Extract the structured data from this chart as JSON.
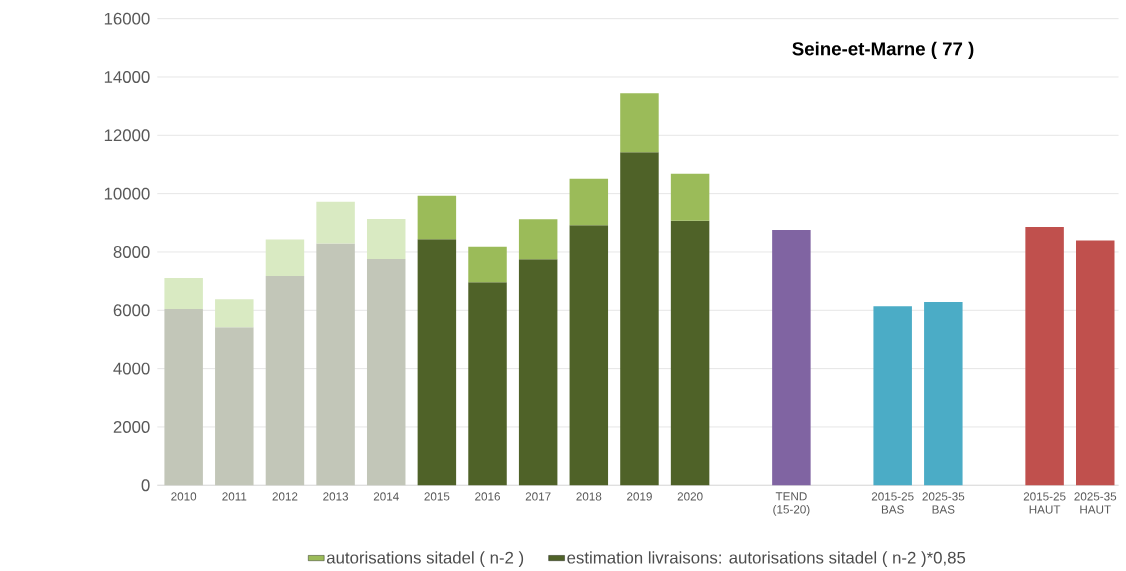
{
  "chart_data": {
    "type": "bar",
    "title": "**Seine-et-Marne ( 77 )**",
    "categories": [
      "2010",
      "2011",
      "2012",
      "2013",
      "2014",
      "2015",
      "2016",
      "2017",
      "2018",
      "2019",
      "2020",
      null,
      "TEND (15-20)",
      null,
      "2015-25 BAS",
      "2025-35 BAS",
      null,
      "2015-25 HAUT",
      "2025-35 HAUT"
    ],
    "stacked": true,
    "series": [
      {
        "name": "estimation livraisons: autorisations sitadel ( n-2 )*0,85",
        "color": "#4f6228",
        "colors": [
          "#c2c6b8",
          "#c2c6b8",
          "#c2c6b8",
          "#c2c6b8",
          "#c2c6b8",
          "#4f6228",
          "#4f6228",
          "#4f6228",
          "#4f6228",
          "#4f6228",
          "#4f6228",
          null,
          null,
          null,
          null,
          null,
          null,
          null,
          null
        ],
        "values": [
          6040,
          5420,
          7180,
          8290,
          7760,
          8440,
          6960,
          7750,
          8920,
          11420,
          9070,
          null,
          null,
          null,
          null,
          null,
          null,
          null,
          null
        ]
      },
      {
        "name": "autorisations sitadel ( n-2 )",
        "color": "#9bbb59",
        "colors": [
          "#d9eac2",
          "#d9eac2",
          "#d9eac2",
          "#d9eac2",
          "#d9eac2",
          "#9bbb59",
          "#9bbb59",
          "#9bbb59",
          "#9bbb59",
          "#9bbb59",
          "#9bbb59",
          null,
          null,
          null,
          null,
          null,
          null,
          null,
          null
        ],
        "values": [
          1070,
          960,
          1250,
          1430,
          1370,
          1490,
          1220,
          1370,
          1590,
          2020,
          1610,
          null,
          null,
          null,
          null,
          null,
          null,
          null,
          null
        ]
      },
      {
        "colors": [
          null,
          null,
          null,
          null,
          null,
          null,
          null,
          null,
          null,
          null,
          null,
          null,
          "#8064a2",
          null,
          "#4bacc6",
          "#4bacc6",
          null,
          "#c0504d",
          "#c0504d"
        ],
        "values": [
          null,
          null,
          null,
          null,
          null,
          null,
          null,
          null,
          null,
          null,
          null,
          null,
          8750,
          null,
          6140,
          6280,
          null,
          8860,
          8390
        ]
      }
    ],
    "ylim": [
      0,
      16000
    ],
    "yticks": [
      0,
      2000,
      4000,
      6000,
      8000,
      10000,
      12000,
      14000,
      16000
    ],
    "grid": "y",
    "legend": "bottom"
  }
}
